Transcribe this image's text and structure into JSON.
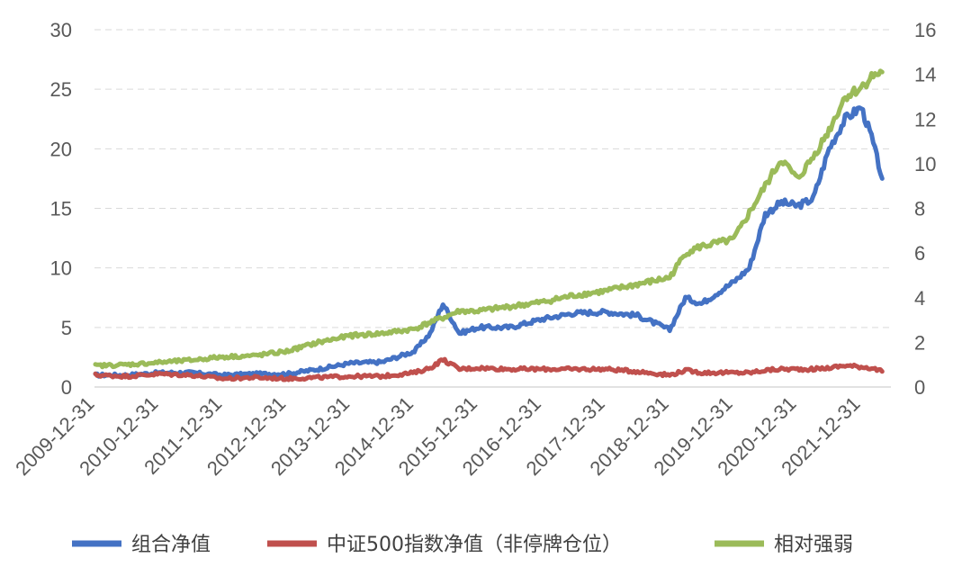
{
  "chart_data": {
    "type": "line",
    "title": "",
    "xlabel": "",
    "ylabel": "",
    "y_left": {
      "lim": [
        0,
        30
      ],
      "ticks": [
        "0",
        "5",
        "10",
        "15",
        "20",
        "25",
        "30"
      ]
    },
    "y_right": {
      "lim": [
        0,
        16
      ],
      "ticks": [
        "0",
        "2",
        "4",
        "6",
        "8",
        "10",
        "12",
        "14",
        "16"
      ]
    },
    "x_ticks": [
      "2009-12-31",
      "2010-12-31",
      "2011-12-31",
      "2012-12-31",
      "2013-12-31",
      "2014-12-31",
      "2015-12-31",
      "2016-12-31",
      "2017-12-31",
      "2018-12-31",
      "2019-12-31",
      "2020-12-31",
      "2021-12-31"
    ],
    "grid": "horizontal dashed",
    "legend_position": "bottom",
    "series": [
      {
        "name": "组合净值",
        "axis": "left",
        "color": "#4472c4",
        "points": [
          [
            "2009-12-31",
            1.0
          ],
          [
            "2010-06-30",
            1.0
          ],
          [
            "2010-12-31",
            1.2
          ],
          [
            "2011-06-30",
            1.2
          ],
          [
            "2011-12-31",
            1.0
          ],
          [
            "2012-06-30",
            1.1
          ],
          [
            "2012-12-31",
            1.1
          ],
          [
            "2013-06-30",
            1.5
          ],
          [
            "2013-12-31",
            2.0
          ],
          [
            "2014-06-30",
            2.1
          ],
          [
            "2014-12-31",
            3.0
          ],
          [
            "2015-03-31",
            4.5
          ],
          [
            "2015-06-12",
            7.0
          ],
          [
            "2015-09-15",
            4.5
          ],
          [
            "2015-12-31",
            5.0
          ],
          [
            "2016-06-30",
            5.0
          ],
          [
            "2016-12-31",
            5.7
          ],
          [
            "2017-06-30",
            6.2
          ],
          [
            "2017-12-31",
            6.3
          ],
          [
            "2018-06-30",
            6.0
          ],
          [
            "2018-12-31",
            4.8
          ],
          [
            "2019-03-31",
            7.5
          ],
          [
            "2019-06-30",
            7.0
          ],
          [
            "2019-12-31",
            8.8
          ],
          [
            "2020-03-31",
            10.0
          ],
          [
            "2020-06-30",
            14.5
          ],
          [
            "2020-09-30",
            15.5
          ],
          [
            "2020-12-31",
            15.2
          ],
          [
            "2021-03-31",
            15.8
          ],
          [
            "2021-06-30",
            20.0
          ],
          [
            "2021-09-30",
            22.5
          ],
          [
            "2021-12-31",
            23.5
          ],
          [
            "2022-02-28",
            21.0
          ],
          [
            "2022-04-30",
            17.5
          ]
        ]
      },
      {
        "name": "中证500指数净值（非停牌仓位）",
        "axis": "left",
        "color": "#c0504d",
        "points": [
          [
            "2009-12-31",
            1.0
          ],
          [
            "2010-06-30",
            0.9
          ],
          [
            "2010-12-31",
            1.1
          ],
          [
            "2011-06-30",
            1.0
          ],
          [
            "2011-12-31",
            0.7
          ],
          [
            "2012-06-30",
            0.8
          ],
          [
            "2012-12-31",
            0.7
          ],
          [
            "2013-06-30",
            0.8
          ],
          [
            "2013-12-31",
            0.9
          ],
          [
            "2014-06-30",
            0.9
          ],
          [
            "2014-12-31",
            1.2
          ],
          [
            "2015-03-31",
            1.6
          ],
          [
            "2015-06-12",
            2.3
          ],
          [
            "2015-09-15",
            1.5
          ],
          [
            "2015-12-31",
            1.6
          ],
          [
            "2016-06-30",
            1.5
          ],
          [
            "2016-12-31",
            1.5
          ],
          [
            "2017-06-30",
            1.5
          ],
          [
            "2017-12-31",
            1.5
          ],
          [
            "2018-06-30",
            1.3
          ],
          [
            "2018-12-31",
            1.0
          ],
          [
            "2019-03-31",
            1.4
          ],
          [
            "2019-06-30",
            1.2
          ],
          [
            "2019-12-31",
            1.2
          ],
          [
            "2020-03-31",
            1.2
          ],
          [
            "2020-06-30",
            1.4
          ],
          [
            "2020-09-30",
            1.5
          ],
          [
            "2020-12-31",
            1.5
          ],
          [
            "2021-03-31",
            1.5
          ],
          [
            "2021-06-30",
            1.6
          ],
          [
            "2021-09-30",
            1.8
          ],
          [
            "2021-12-31",
            1.7
          ],
          [
            "2022-02-28",
            1.6
          ],
          [
            "2022-04-30",
            1.3
          ]
        ]
      },
      {
        "name": "相对强弱",
        "axis": "right",
        "color": "#9bbb59",
        "points": [
          [
            "2009-12-31",
            0.95
          ],
          [
            "2010-06-30",
            1.0
          ],
          [
            "2010-12-31",
            1.1
          ],
          [
            "2011-06-30",
            1.2
          ],
          [
            "2011-12-31",
            1.35
          ],
          [
            "2012-06-30",
            1.4
          ],
          [
            "2012-12-31",
            1.6
          ],
          [
            "2013-06-30",
            2.0
          ],
          [
            "2013-12-31",
            2.3
          ],
          [
            "2014-06-30",
            2.4
          ],
          [
            "2014-12-31",
            2.6
          ],
          [
            "2015-03-31",
            2.9
          ],
          [
            "2015-06-12",
            3.1
          ],
          [
            "2015-09-15",
            3.4
          ],
          [
            "2015-12-31",
            3.4
          ],
          [
            "2016-06-30",
            3.6
          ],
          [
            "2016-12-31",
            3.8
          ],
          [
            "2017-06-30",
            4.1
          ],
          [
            "2017-12-31",
            4.3
          ],
          [
            "2018-06-30",
            4.6
          ],
          [
            "2018-12-31",
            4.9
          ],
          [
            "2019-03-31",
            6.0
          ],
          [
            "2019-06-30",
            6.3
          ],
          [
            "2019-12-31",
            6.6
          ],
          [
            "2020-03-31",
            7.8
          ],
          [
            "2020-06-30",
            9.0
          ],
          [
            "2020-09-30",
            10.2
          ],
          [
            "2020-12-31",
            9.3
          ],
          [
            "2021-03-31",
            10.3
          ],
          [
            "2021-06-30",
            11.5
          ],
          [
            "2021-09-30",
            13.0
          ],
          [
            "2021-12-31",
            13.4
          ],
          [
            "2022-02-28",
            13.9
          ],
          [
            "2022-04-30",
            14.1
          ]
        ]
      }
    ]
  }
}
